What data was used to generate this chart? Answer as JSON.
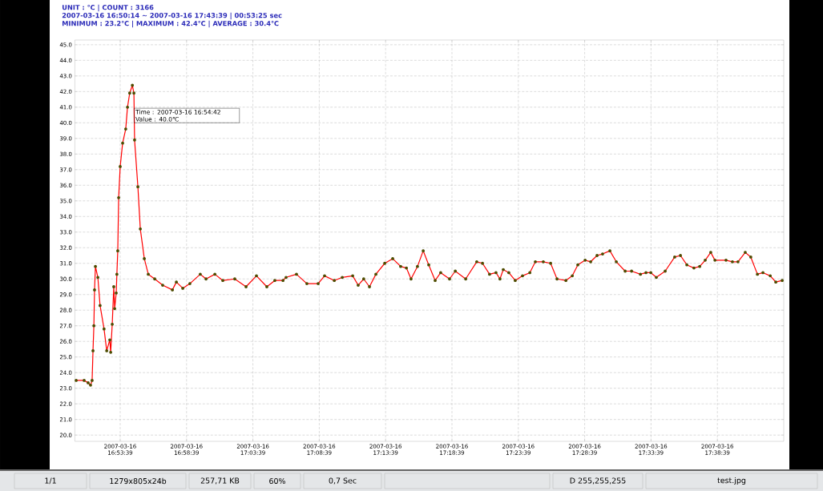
{
  "chart_data": {
    "type": "line",
    "title": "UNIT : ℃ | COUNT : 3166",
    "subtitle": "2007-03-16 16:50:14 ~ 2007-03-16 17:43:39 | 00:53:25 sec",
    "annotations": [
      "MINIMUM : 23.2℃ | MAXIMUM : 42.4℃ | AVERAGE : 30.4℃",
      {
        "text": "Time : 2007-03-16 16:54:42 Value : 40.0℃",
        "x": "2007-03-16T16:54:42",
        "y": 40.0
      },
      "1/1",
      "1279x805x24b",
      "257,71 KB",
      "60%",
      "0,7 Sec",
      "D 255,255,255",
      "test.jpg"
    ],
    "x": [
      "2007-03-16T16:50:20",
      "2007-03-16T16:50:56",
      "2007-03-16T16:51:14",
      "2007-03-16T16:51:25",
      "2007-03-16T16:51:32",
      "2007-03-16T16:51:36",
      "2007-03-16T16:51:40",
      "2007-03-16T16:51:43",
      "2007-03-16T16:51:47",
      "2007-03-16T16:51:58",
      "2007-03-16T16:52:08",
      "2007-03-16T16:52:26",
      "2007-03-16T16:52:38",
      "2007-03-16T16:52:52",
      "2007-03-16T16:52:56",
      "2007-03-16T16:53:03",
      "2007-03-16T16:53:10",
      "2007-03-16T16:53:14",
      "2007-03-16T16:53:21",
      "2007-03-16T16:53:24",
      "2007-03-16T16:53:28",
      "2007-03-16T16:53:32",
      "2007-03-16T16:53:39",
      "2007-03-16T16:53:50",
      "2007-03-16T16:54:04",
      "2007-03-16T16:54:12",
      "2007-03-16T16:54:22",
      "2007-03-16T16:54:34",
      "2007-03-16T16:54:41",
      "2007-03-16T16:54:44",
      "2007-03-16T16:54:59",
      "2007-03-16T16:55:10",
      "2007-03-16T16:55:28",
      "2007-03-16T16:55:46",
      "2007-03-16T16:56:15",
      "2007-03-16T16:56:51",
      "2007-03-16T16:57:35",
      "2007-03-16T16:57:53",
      "2007-03-16T16:58:22",
      "2007-03-16T16:58:54",
      "2007-03-16T16:59:41",
      "2007-03-16T17:00:07",
      "2007-03-16T17:00:47",
      "2007-03-16T17:01:23",
      "2007-03-16T17:02:17",
      "2007-03-16T17:03:08",
      "2007-03-16T17:03:55",
      "2007-03-16T17:04:42",
      "2007-03-16T17:05:18",
      "2007-03-16T17:05:55",
      "2007-03-16T17:06:09",
      "2007-03-16T17:06:56",
      "2007-03-16T17:07:43",
      "2007-03-16T17:08:34",
      "2007-03-16T17:09:03",
      "2007-03-16T17:09:47",
      "2007-03-16T17:10:23",
      "2007-03-16T17:11:10",
      "2007-03-16T17:11:35",
      "2007-03-16T17:12:00",
      "2007-03-16T17:12:26",
      "2007-03-16T17:12:55",
      "2007-03-16T17:13:35",
      "2007-03-16T17:14:11",
      "2007-03-16T17:14:47",
      "2007-03-16T17:15:13",
      "2007-03-16T17:15:34",
      "2007-03-16T17:16:03",
      "2007-03-16T17:16:29",
      "2007-03-16T17:16:54",
      "2007-03-16T17:17:23",
      "2007-03-16T17:17:48",
      "2007-03-16T17:18:28",
      "2007-03-16T17:18:54",
      "2007-03-16T17:19:41",
      "2007-03-16T17:20:31",
      "2007-03-16T17:20:57",
      "2007-03-16T17:21:29",
      "2007-03-16T17:21:58",
      "2007-03-16T17:22:16",
      "2007-03-16T17:22:31",
      "2007-03-16T17:22:56",
      "2007-03-16T17:23:25",
      "2007-03-16T17:23:58",
      "2007-03-16T17:24:31",
      "2007-03-16T17:24:56",
      "2007-03-16T17:25:32",
      "2007-03-16T17:26:05",
      "2007-03-16T17:26:34",
      "2007-03-16T17:27:14",
      "2007-03-16T17:27:43",
      "2007-03-16T17:28:08",
      "2007-03-16T17:28:41",
      "2007-03-16T17:29:06",
      "2007-03-16T17:29:35",
      "2007-03-16T17:30:00",
      "2007-03-16T17:30:33",
      "2007-03-16T17:31:02",
      "2007-03-16T17:31:42",
      "2007-03-16T17:32:11",
      "2007-03-16T17:32:51",
      "2007-03-16T17:33:16",
      "2007-03-16T17:33:38",
      "2007-03-16T17:34:03",
      "2007-03-16T17:34:43",
      "2007-03-16T17:35:26",
      "2007-03-16T17:35:52",
      "2007-03-16T17:36:21",
      "2007-03-16T17:36:53",
      "2007-03-16T17:37:19",
      "2007-03-16T17:37:44",
      "2007-03-16T17:38:09",
      "2007-03-16T17:38:28",
      "2007-03-16T17:39:18",
      "2007-03-16T17:39:47",
      "2007-03-16T17:40:12",
      "2007-03-16T17:40:45",
      "2007-03-16T17:41:10",
      "2007-03-16T17:41:40",
      "2007-03-16T17:42:05",
      "2007-03-16T17:42:38",
      "2007-03-16T17:43:03",
      "2007-03-16T17:43:32"
    ],
    "values": [
      23.5,
      23.5,
      23.35,
      23.2,
      23.5,
      25.4,
      27.0,
      29.3,
      30.8,
      30.1,
      28.3,
      26.8,
      25.4,
      26.1,
      25.3,
      27.1,
      29.5,
      28.1,
      29.1,
      30.3,
      31.8,
      35.2,
      37.2,
      38.7,
      39.6,
      41.0,
      41.9,
      42.4,
      41.9,
      38.9,
      35.9,
      33.2,
      31.3,
      30.3,
      30.0,
      29.6,
      29.3,
      29.8,
      29.4,
      29.7,
      30.3,
      30.0,
      30.3,
      29.9,
      30.0,
      29.5,
      30.2,
      29.5,
      29.9,
      29.9,
      30.1,
      30.3,
      29.7,
      29.7,
      30.2,
      29.9,
      30.1,
      30.2,
      29.6,
      30.0,
      29.5,
      30.3,
      31.0,
      31.3,
      30.8,
      30.7,
      30.0,
      30.8,
      31.8,
      30.9,
      29.9,
      30.4,
      30.0,
      30.5,
      30.0,
      31.1,
      31.0,
      30.3,
      30.4,
      30.0,
      30.6,
      30.4,
      29.9,
      30.2,
      30.4,
      31.1,
      31.1,
      31.0,
      30.0,
      29.9,
      30.2,
      30.9,
      31.2,
      31.1,
      31.5,
      31.6,
      31.8,
      31.1,
      30.5,
      30.5,
      30.3,
      30.4,
      30.4,
      30.1,
      30.5,
      31.4,
      31.5,
      30.9,
      30.7,
      30.8,
      31.2,
      31.7,
      31.2,
      31.2,
      31.1,
      31.1,
      31.7,
      31.4,
      30.3,
      30.4,
      30.2,
      29.8,
      29.9
    ],
    "color": "#ff0000",
    "marker": "circle",
    "grid": true,
    "xlim": [
      "2007-03-16T16:50:14",
      "2007-03-16T17:43:39"
    ],
    "xticks": [
      {
        "value": "2007-03-16T16:53:39",
        "label": "2007-03-16 16:53:39"
      },
      {
        "value": "2007-03-16T16:58:39",
        "label": "2007-03-16 16:58:39"
      },
      {
        "value": "2007-03-16T17:03:39",
        "label": "2007-03-16 17:03:39"
      },
      {
        "value": "2007-03-16T17:08:39",
        "label": "2007-03-16 17:08:39"
      },
      {
        "value": "2007-03-16T17:13:39",
        "label": "2007-03-16 17:13:39"
      },
      {
        "value": "2007-03-16T17:18:39",
        "label": "2007-03-16 17:18:39"
      },
      {
        "value": "2007-03-16T17:23:39",
        "label": "2007-03-16 17:23:39"
      },
      {
        "value": "2007-03-16T17:28:39",
        "label": "2007-03-16 17:28:39"
      },
      {
        "value": "2007-03-16T17:33:39",
        "label": "2007-03-16 17:33:39"
      },
      {
        "value": "2007-03-16T17:38:39",
        "label": "2007-03-16 17:38:39"
      }
    ],
    "ylim": [
      19.6,
      45.3
    ],
    "yticks": [
      {
        "value": 20,
        "label": "20.0"
      },
      {
        "value": 21,
        "label": "21.0"
      },
      {
        "value": 22,
        "label": "22.0"
      },
      {
        "value": 23,
        "label": "23.0"
      },
      {
        "value": 24,
        "label": "24.0"
      },
      {
        "value": 25,
        "label": "25.0"
      },
      {
        "value": 26,
        "label": "26.0"
      },
      {
        "value": 27,
        "label": "27.0"
      },
      {
        "value": 28,
        "label": "28.0"
      },
      {
        "value": 29,
        "label": "29.0"
      },
      {
        "value": 30,
        "label": "30.0"
      },
      {
        "value": 31,
        "label": "31.0"
      },
      {
        "value": 32,
        "label": "32.0"
      },
      {
        "value": 33,
        "label": "33.0"
      },
      {
        "value": 34,
        "label": "34.0"
      },
      {
        "value": 35,
        "label": "35.0"
      },
      {
        "value": 36,
        "label": "36.0"
      },
      {
        "value": 37,
        "label": "37.0"
      },
      {
        "value": 38,
        "label": "38.0"
      },
      {
        "value": 39,
        "label": "39.0"
      },
      {
        "value": 40,
        "label": "40.0"
      },
      {
        "value": 41,
        "label": "41.0"
      },
      {
        "value": 42,
        "label": "42.0"
      },
      {
        "value": 43,
        "label": "43.0"
      },
      {
        "value": 44,
        "label": "44.0"
      },
      {
        "value": 45,
        "label": "45.0"
      }
    ]
  }
}
